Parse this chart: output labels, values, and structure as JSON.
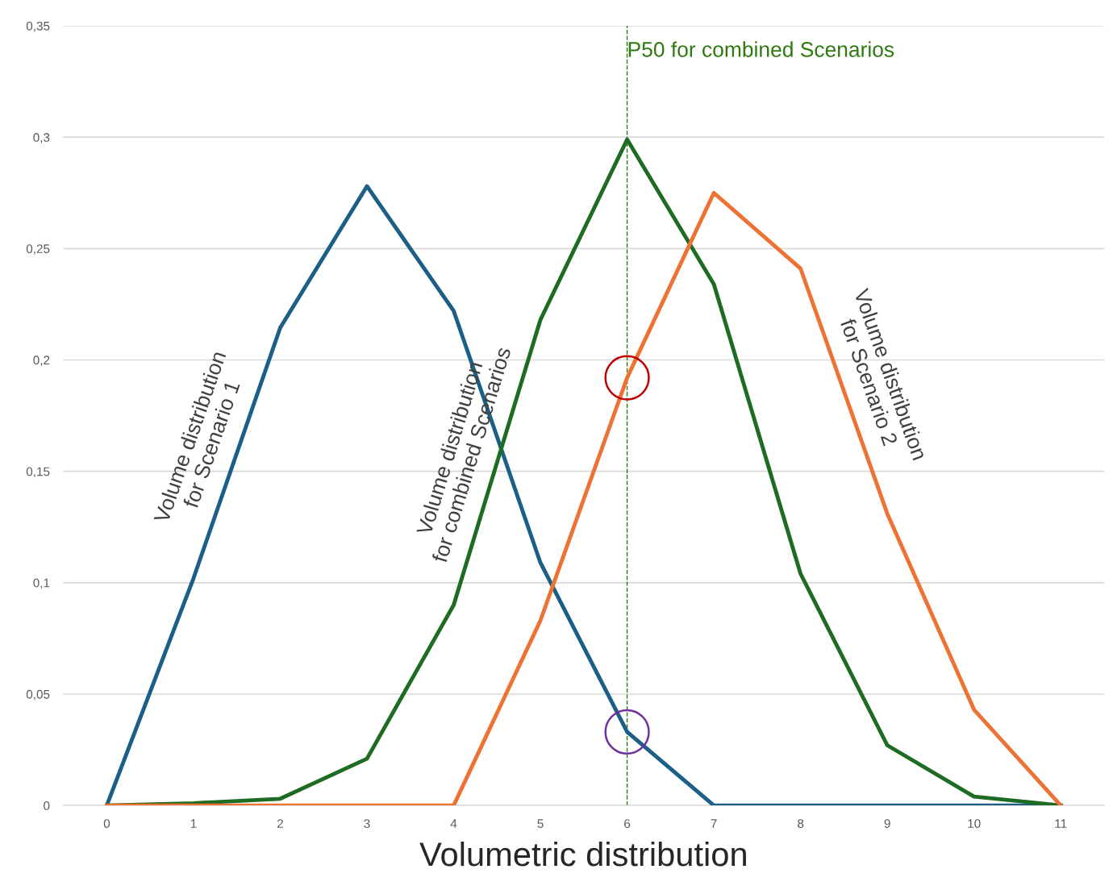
{
  "chart_data": {
    "type": "line",
    "xlabel": "Volumetric distribution",
    "x": [
      0,
      1,
      2,
      3,
      4,
      5,
      6,
      7,
      8,
      9,
      10,
      11
    ],
    "series": [
      {
        "name": "Volume distribution\nfor Scenario 1",
        "color": "#1b5e86",
        "values": [
          0,
          0.102,
          0.2145,
          0.278,
          0.222,
          0.109,
          0.033,
          0,
          0,
          0,
          0,
          0
        ]
      },
      {
        "name": "Volume distribution\nfor combined Scenarios",
        "color": "#1e6b23",
        "values": [
          0,
          0.001,
          0.003,
          0.021,
          0.09,
          0.218,
          0.299,
          0.234,
          0.104,
          0.027,
          0.004,
          0
        ]
      },
      {
        "name": "Volume distribution\nfor Scenario 2",
        "color": "#ed7233",
        "values": [
          0,
          0,
          0,
          0,
          0,
          0.083,
          0.192,
          0.275,
          0.241,
          0.131,
          0.043,
          0
        ]
      },
      {
        "type": "scatter",
        "marker": "circle",
        "x": [
          6
        ],
        "color": "#c00000",
        "values": [
          0.192
        ]
      },
      {
        "type": "scatter",
        "marker": "circle",
        "x": [
          6
        ],
        "color": "#7030a0",
        "values": [
          0.033
        ]
      }
    ],
    "ref_lines": [
      {
        "axis": "x",
        "value": 6,
        "label": "P50 for combined Scenarios",
        "color": "#2e7a0e",
        "line_style": "dashed"
      }
    ],
    "xlim": [
      -0.5,
      11.5
    ],
    "ylim": [
      0,
      0.35
    ],
    "xticks": [
      0,
      1,
      2,
      3,
      4,
      5,
      6,
      7,
      8,
      9,
      10,
      11
    ],
    "yticks": [
      0,
      {
        "value": 0.05,
        "label": "0,05"
      },
      {
        "value": 0.1,
        "label": "0,1"
      },
      {
        "value": 0.15,
        "label": "0,15"
      },
      {
        "value": 0.2,
        "label": "0,2"
      },
      {
        "value": 0.25,
        "label": "0,25"
      },
      {
        "value": 0.3,
        "label": "0,3"
      },
      {
        "value": 0.35,
        "label": "0,35"
      }
    ],
    "grid": "y",
    "legend": false,
    "marker": "none",
    "line_style": "solid"
  }
}
